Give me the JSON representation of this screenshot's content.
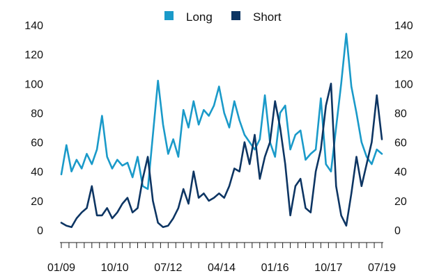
{
  "chart_data": {
    "type": "line",
    "title": "",
    "xlabel": "",
    "ylabel": "",
    "ylim": [
      0,
      140
    ],
    "yticks": [
      0,
      20,
      40,
      60,
      80,
      100,
      120,
      140
    ],
    "right_axis": true,
    "grid": false,
    "legend_position": "top-center",
    "x_tick_labels": [
      {
        "label": "01/09",
        "date": "2009-01"
      },
      {
        "label": "10/10",
        "date": "2010-10"
      },
      {
        "label": "07/12",
        "date": "2012-07"
      },
      {
        "label": "04/14",
        "date": "2014-04"
      },
      {
        "label": "01/16",
        "date": "2016-01"
      },
      {
        "label": "10/17",
        "date": "2017-10"
      },
      {
        "label": "07/19",
        "date": "2019-07"
      }
    ],
    "x_range": [
      "2009-01",
      "2019-07"
    ],
    "x": [
      "2009-01",
      "2009-03",
      "2009-05",
      "2009-07",
      "2009-09",
      "2009-11",
      "2010-01",
      "2010-03",
      "2010-05",
      "2010-07",
      "2010-09",
      "2010-11",
      "2011-01",
      "2011-03",
      "2011-05",
      "2011-07",
      "2011-09",
      "2011-11",
      "2012-01",
      "2012-03",
      "2012-05",
      "2012-07",
      "2012-09",
      "2012-11",
      "2013-01",
      "2013-03",
      "2013-05",
      "2013-07",
      "2013-09",
      "2013-11",
      "2014-01",
      "2014-03",
      "2014-05",
      "2014-07",
      "2014-09",
      "2014-11",
      "2015-01",
      "2015-03",
      "2015-05",
      "2015-07",
      "2015-09",
      "2015-11",
      "2016-01",
      "2016-03",
      "2016-05",
      "2016-07",
      "2016-09",
      "2016-11",
      "2017-01",
      "2017-03",
      "2017-05",
      "2017-07",
      "2017-09",
      "2017-11",
      "2018-01",
      "2018-03",
      "2018-05",
      "2018-07",
      "2018-09",
      "2018-11",
      "2019-01",
      "2019-03",
      "2019-05",
      "2019-07"
    ],
    "series": [
      {
        "name": "Long",
        "color": "#1a9ac9",
        "values": [
          38,
          58,
          40,
          48,
          42,
          52,
          45,
          55,
          78,
          50,
          42,
          48,
          44,
          46,
          36,
          50,
          30,
          28,
          65,
          102,
          72,
          52,
          62,
          50,
          82,
          70,
          88,
          72,
          82,
          78,
          85,
          98,
          80,
          70,
          88,
          75,
          65,
          60,
          55,
          62,
          92,
          60,
          50,
          80,
          85,
          55,
          65,
          68,
          48,
          52,
          55,
          90,
          45,
          40,
          70,
          100,
          134,
          98,
          80,
          60,
          50,
          45,
          55,
          52
        ]
      },
      {
        "name": "Short",
        "color": "#0d3563",
        "values": [
          5,
          3,
          2,
          8,
          12,
          15,
          30,
          10,
          10,
          15,
          8,
          12,
          18,
          22,
          12,
          15,
          35,
          50,
          20,
          5,
          2,
          3,
          8,
          15,
          28,
          18,
          40,
          22,
          25,
          20,
          22,
          25,
          22,
          30,
          42,
          40,
          60,
          45,
          65,
          35,
          50,
          60,
          88,
          70,
          45,
          10,
          30,
          35,
          15,
          12,
          40,
          55,
          85,
          100,
          30,
          10,
          3,
          25,
          50,
          30,
          45,
          60,
          92,
          62
        ]
      }
    ]
  }
}
